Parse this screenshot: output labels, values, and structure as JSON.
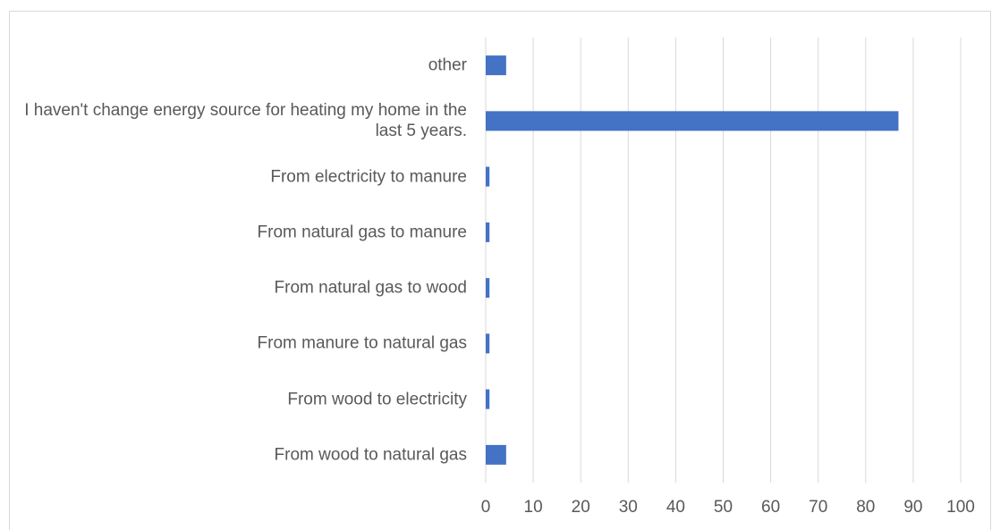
{
  "chart_data": {
    "type": "bar",
    "orientation": "horizontal",
    "categories": [
      "other",
      "I haven't change energy source for heating my home in the last 5 years.",
      "From electricity to manure",
      "From natural gas to manure",
      "From natural gas to wood",
      "From manure to natural gas",
      "From wood to electricity",
      "From wood to natural gas"
    ],
    "values": [
      4.3,
      86.9,
      0.8,
      0.8,
      0.8,
      0.8,
      0.8,
      4.3
    ],
    "color": "#4472c4",
    "xlim": [
      0,
      100
    ],
    "xticks": [
      0,
      10,
      20,
      30,
      40,
      50,
      60,
      70,
      80,
      90,
      100
    ],
    "grid": true
  }
}
